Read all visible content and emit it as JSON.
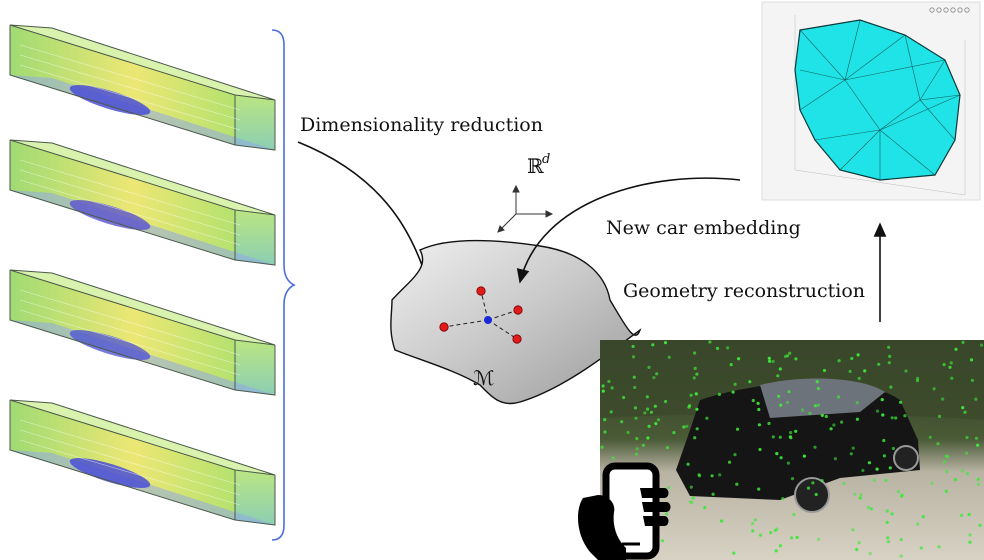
{
  "labels": {
    "dimensionality_reduction": "Dimensionality reduction",
    "new_car_embedding": "New car embedding",
    "geometry_reconstruction": "Geometry reconstruction",
    "space_symbol": "ℝ",
    "space_exponent": "d",
    "manifold_symbol": "ℳ"
  },
  "colors": {
    "flow_green": "#9ad94a",
    "flow_yellow": "#e8e25a",
    "car_blue": "#4a4fd6",
    "brace_blue": "#4d6fd8",
    "mesh_cyan": "#1fe3e6",
    "point_red": "#e01b1b",
    "embed_blue": "#1a2bd6",
    "feature_green": "#3ee83a",
    "manifold_gray": "#c9c9c9"
  },
  "icons": {
    "phone": "hand-holding-phone-icon",
    "axes": "3d-axes-icon"
  }
}
